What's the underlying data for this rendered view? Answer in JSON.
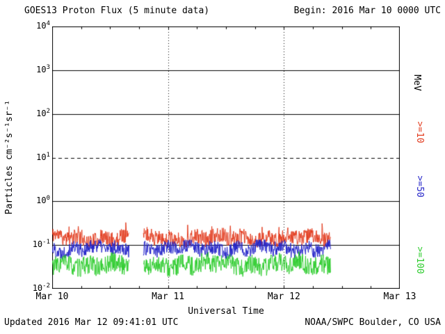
{
  "header": {
    "title": "GOES13 Proton Flux (5 minute data)",
    "begin_label": "Begin: 2016 Mar 10 0000 UTC"
  },
  "footer": {
    "updated": "Updated 2016 Mar 12 09:41:01 UTC",
    "source": "NOAA/SWPC Boulder, CO USA"
  },
  "chart_data": {
    "type": "line",
    "title": "GOES13 Proton Flux (5 minute data)",
    "xlabel": "Universal Time",
    "ylabel": "Particles cm⁻²s⁻¹sr⁻¹",
    "right_axis_label": "MeV",
    "x_ticks": [
      "Mar 10",
      "Mar 11",
      "Mar 12",
      "Mar 13"
    ],
    "x_range_hours": [
      0,
      72
    ],
    "y_scale": "log10",
    "y_log_range": [
      -2,
      4
    ],
    "y_tick_exps": [
      4,
      3,
      2,
      1,
      0,
      -1,
      -2
    ],
    "solid_gridline_exps": [
      3,
      2,
      0,
      -1
    ],
    "dashed_gridline_exp": 1,
    "dotted_vertical_hours": [
      24,
      48
    ],
    "cadence_minutes": 5,
    "data_segments_hours": [
      [
        0,
        16.0
      ],
      [
        18.9,
        57.68
      ]
    ],
    "series": [
      {
        "name": ">=10",
        "label": ">=10",
        "color": "#e23b1e",
        "units": "MeV",
        "log_mean": -0.84,
        "log_noise": 0.18,
        "spike": 0.32,
        "spike_prob": 0.04,
        "clamp": [
          -1.05,
          -0.45
        ],
        "approx_flux_range": [
          0.07,
          0.35
        ],
        "seed": 11,
        "phase": 0.7
      },
      {
        "name": ">=50",
        "label": ">=50",
        "color": "#2323c8",
        "units": "MeV",
        "log_mean": -1.08,
        "log_noise": 0.17,
        "spike": 0,
        "spike_prob": 0,
        "clamp": [
          -1.32,
          -0.88
        ],
        "approx_flux_range": [
          0.05,
          0.13
        ],
        "seed": 22,
        "phase": 2.1
      },
      {
        "name": ">=100",
        "label": ">=100",
        "color": "#2ecc2e",
        "units": "MeV",
        "log_mean": -1.45,
        "log_noise": 0.22,
        "spike": 0,
        "spike_prob": 0,
        "clamp": [
          -1.72,
          -1.12
        ],
        "approx_flux_range": [
          0.02,
          0.075
        ],
        "seed": 33,
        "phase": 4.2
      }
    ]
  }
}
